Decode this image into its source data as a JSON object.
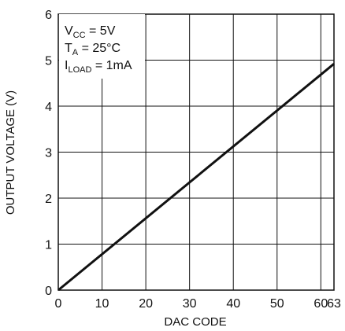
{
  "chart_data": {
    "type": "line",
    "title": "",
    "xlabel": "DAC CODE",
    "ylabel": "OUTPUT VOLTAGE (V)",
    "xlim": [
      0,
      63
    ],
    "ylim": [
      0,
      6
    ],
    "x_ticks": [
      0,
      10,
      20,
      30,
      40,
      50,
      60,
      63
    ],
    "x_tick_labels": [
      "0",
      "10",
      "20",
      "30",
      "40",
      "50",
      "60",
      "63"
    ],
    "y_ticks": [
      0,
      1,
      2,
      3,
      4,
      5,
      6
    ],
    "y_tick_labels": [
      "0",
      "1",
      "2",
      "3",
      "4",
      "5",
      "6"
    ],
    "grid": true,
    "series": [
      {
        "x": [
          0,
          63
        ],
        "y": [
          0,
          4.92
        ]
      }
    ],
    "annotations": {
      "line1": {
        "main": "V",
        "sub": "CC",
        "rest": " = 5V"
      },
      "line2": {
        "main": "T",
        "sub": "A",
        "rest": " = 25°C"
      },
      "line3": {
        "main": "I",
        "sub": "LOAD",
        "rest": " = 1mA"
      }
    }
  }
}
